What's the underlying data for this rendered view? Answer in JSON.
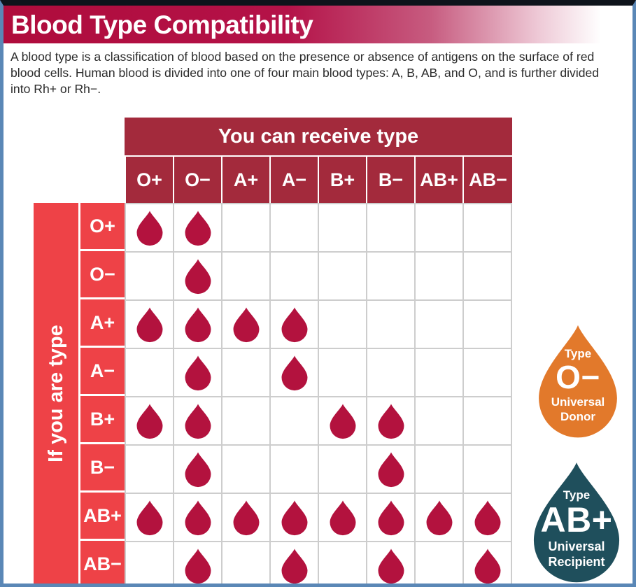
{
  "page": {
    "title": "Blood Type Compatibility",
    "description": "A blood type is a classification of blood based on the presence or absence of antigens on the surface of red blood cells. Human blood is divided into one of four main blood types: A, B, AB, and O, and is further divided into Rh+ or Rh−."
  },
  "colors": {
    "title_bar_gradient_start": "#af0c3c",
    "column_header_bg": "#a32a3c",
    "row_header_bg": "#ee4247",
    "drop": "#b3123e",
    "universal_donor_orange": "#e2792b",
    "universal_recipient_teal": "#1f4f5c",
    "frame_border_blue": "#5a87b6",
    "top_strip_dark": "#0e131b",
    "grid_line": "#cdcdcd"
  },
  "chart_data": {
    "type": "table",
    "title": "Blood Type Compatibility",
    "column_axis_label": "You can receive type",
    "row_axis_label": "If you are type",
    "marker": "blood-drop-icon",
    "columns": [
      "O+",
      "O−",
      "A+",
      "A−",
      "B+",
      "B−",
      "AB+",
      "AB−"
    ],
    "rows": [
      {
        "label": "O+",
        "receives": [
          "O+",
          "O−"
        ]
      },
      {
        "label": "O−",
        "receives": [
          "O−"
        ]
      },
      {
        "label": "A+",
        "receives": [
          "O+",
          "O−",
          "A+",
          "A−"
        ]
      },
      {
        "label": "A−",
        "receives": [
          "O−",
          "A−"
        ]
      },
      {
        "label": "B+",
        "receives": [
          "O+",
          "O−",
          "B+",
          "B−"
        ]
      },
      {
        "label": "B−",
        "receives": [
          "O−",
          "B−"
        ]
      },
      {
        "label": "AB+",
        "receives": [
          "O+",
          "O−",
          "A+",
          "A−",
          "B+",
          "B−",
          "AB+",
          "AB−"
        ]
      },
      {
        "label": "AB−",
        "receives": [
          "O−",
          "A−",
          "B−",
          "AB−"
        ]
      }
    ]
  },
  "badges": [
    {
      "id": "universal-donor",
      "type_label": "Type",
      "blood_type": "O−",
      "caption": [
        "Universal",
        "Donor"
      ],
      "color": "#e2792b"
    },
    {
      "id": "universal-recipient",
      "type_label": "Type",
      "blood_type": "AB+",
      "caption": [
        "Universal",
        "Recipient"
      ],
      "color": "#1f4f5c"
    }
  ]
}
